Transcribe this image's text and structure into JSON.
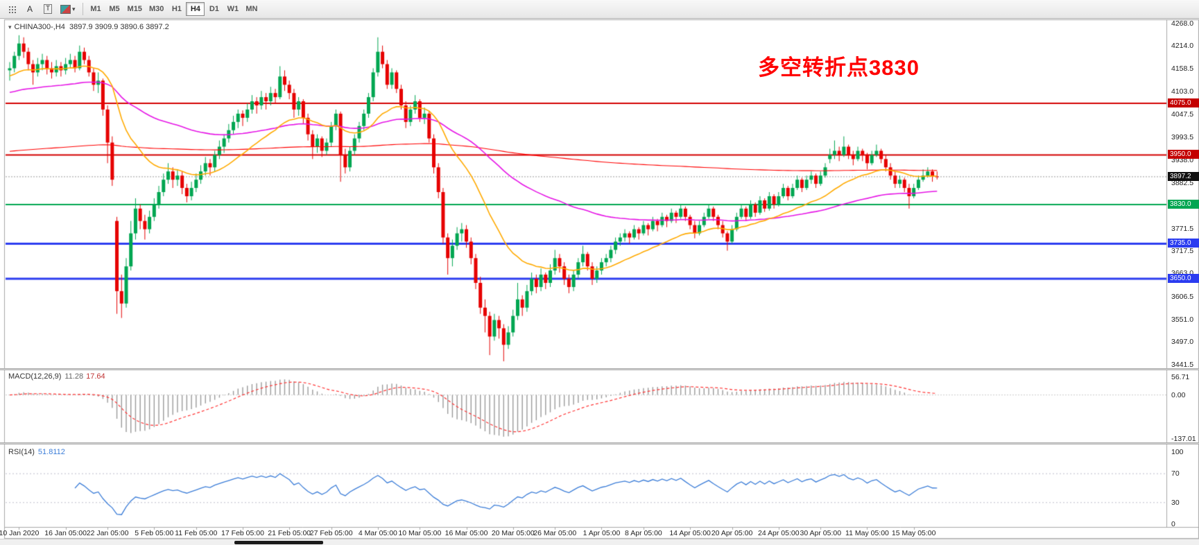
{
  "toolbar": {
    "tool_a": "A",
    "tool_t": "T",
    "timeframes": [
      "M1",
      "M5",
      "M15",
      "M30",
      "H1",
      "H4",
      "D1",
      "W1",
      "MN"
    ],
    "active_timeframe": "H4"
  },
  "chart": {
    "title_symbol": "CHINA300-,H4",
    "title_ohlc": "3897.9 3909.9 3890.6 3897.2",
    "collapse_glyph": "▾",
    "annotation": {
      "text": "多空转折点3830",
      "color": "#ff0000"
    },
    "price_axis_ticks": [
      "4268.0",
      "4214.0",
      "4158.5",
      "4103.0",
      "4047.5",
      "3993.5",
      "3938.0",
      "3882.5",
      "3826.5",
      "3771.5",
      "3717.5",
      "3663.0",
      "3606.5",
      "3551.0",
      "3497.0",
      "3441.5"
    ],
    "price_badges": [
      {
        "text": "4075.0",
        "price": 4075.0,
        "bg": "#c40000"
      },
      {
        "text": "3950.0",
        "price": 3950.0,
        "bg": "#c40000"
      },
      {
        "text": "3897.2",
        "price": 3897.2,
        "bg": "#111111"
      },
      {
        "text": "3830.0",
        "price": 3830.0,
        "bg": "#00a651"
      },
      {
        "text": "3735.0",
        "price": 3735.0,
        "bg": "#2b3cf0"
      },
      {
        "text": "3650.0",
        "price": 3650.0,
        "bg": "#2b3cf0"
      }
    ],
    "time_labels": [
      "10 Jan 2020",
      "16 Jan 05:00",
      "22 Jan 05:00",
      "5 Feb 05:00",
      "11 Feb 05:00",
      "17 Feb 05:00",
      "21 Feb 05:00",
      "27 Feb 05:00",
      "4 Mar 05:00",
      "10 Mar 05:00",
      "16 Mar 05:00",
      "20 Mar 05:00",
      "26 Mar 05:00",
      "1 Apr 05:00",
      "8 Apr 05:00",
      "14 Apr 05:00",
      "20 Apr 05:00",
      "24 Apr 05:00",
      "30 Apr 05:00",
      "11 May 05:00",
      "15 May 05:00"
    ]
  },
  "macd": {
    "label": "MACD(12,26,9)",
    "main_value": "11.28",
    "signal_value": "17.64",
    "axis": [
      {
        "text": "56.71",
        "value": 56.71
      },
      {
        "text": "0.00",
        "value": 0
      },
      {
        "text": "-137.01",
        "value": -137.01
      }
    ]
  },
  "rsi": {
    "label": "RSI(14)",
    "value": "51.8112",
    "axis": [
      {
        "text": "100",
        "value": 100
      },
      {
        "text": "70",
        "value": 70
      },
      {
        "text": "30",
        "value": 30
      },
      {
        "text": "0",
        "value": 0
      }
    ]
  },
  "chart_data": {
    "type": "candlestick",
    "symbol": "CHINA300-",
    "timeframe": "H4",
    "last_ohlc": {
      "open": 3897.9,
      "high": 3909.9,
      "low": 3890.6,
      "close": 3897.2
    },
    "current_price": 3897.2,
    "price_range": [
      3435,
      4275
    ],
    "levels": [
      {
        "price": 4075,
        "color": "#d40000",
        "width": 2
      },
      {
        "price": 3950,
        "color": "#d40000",
        "width": 2
      },
      {
        "price": 3830,
        "color": "#00a651",
        "width": 2
      },
      {
        "price": 3735,
        "color": "#2b3cf0",
        "width": 3
      },
      {
        "price": 3650,
        "color": "#2b3cf0",
        "width": 3
      }
    ],
    "colors": {
      "up": "#00a651",
      "down": "#e60000",
      "macd_hist": "#9a9a9a",
      "macd_signal": "#ff3333",
      "rsi": "#3b7dd8"
    },
    "moving_averages": [
      {
        "name": "ma-slow-red",
        "color": "#ff0000",
        "alpha": 0.004,
        "seed": 3958,
        "width": 1.1
      },
      {
        "name": "ma-medium-magenta",
        "color": "#e614e6",
        "alpha": 0.025,
        "seed": 4100,
        "width": 1.6
      },
      {
        "name": "ma-fast-orange",
        "color": "#ffaa00",
        "alpha": 0.08,
        "seed": 4140,
        "width": 1.6
      }
    ],
    "macd": {
      "fast": 12,
      "slow": 26,
      "signal": 9,
      "scale": [
        -140,
        60
      ]
    },
    "rsi": {
      "period": 14,
      "levels": [
        70,
        30
      ],
      "scale": [
        0,
        100
      ]
    },
    "x_label_indices": [
      2,
      12,
      21,
      31,
      40,
      50,
      60,
      69,
      79,
      88,
      98,
      108,
      117,
      127,
      136,
      146,
      155,
      165,
      174,
      184,
      194
    ],
    "candles": [
      [
        4155,
        4175,
        4130,
        4160
      ],
      [
        4160,
        4200,
        4150,
        4190
      ],
      [
        4190,
        4240,
        4180,
        4220
      ],
      [
        4220,
        4235,
        4185,
        4200
      ],
      [
        4200,
        4210,
        4155,
        4170
      ],
      [
        4170,
        4180,
        4120,
        4150
      ],
      [
        4150,
        4185,
        4140,
        4170
      ],
      [
        4170,
        4195,
        4155,
        4180
      ],
      [
        4180,
        4190,
        4145,
        4160
      ],
      [
        4160,
        4175,
        4135,
        4150
      ],
      [
        4150,
        4180,
        4140,
        4165
      ],
      [
        4165,
        4175,
        4140,
        4155
      ],
      [
        4155,
        4185,
        4145,
        4170
      ],
      [
        4170,
        4195,
        4160,
        4180
      ],
      [
        4180,
        4190,
        4150,
        4160
      ],
      [
        4160,
        4215,
        4155,
        4200
      ],
      [
        4200,
        4210,
        4170,
        4180
      ],
      [
        4180,
        4190,
        4140,
        4150
      ],
      [
        4150,
        4160,
        4105,
        4120
      ],
      [
        4120,
        4150,
        4100,
        4130
      ],
      [
        4130,
        4135,
        4045,
        4060
      ],
      [
        4060,
        4070,
        3930,
        3980
      ],
      [
        3980,
        3995,
        3875,
        3890
      ],
      [
        3790,
        3800,
        3565,
        3620
      ],
      [
        3620,
        3660,
        3555,
        3590
      ],
      [
        3590,
        3700,
        3580,
        3680
      ],
      [
        3680,
        3790,
        3670,
        3760
      ],
      [
        3760,
        3845,
        3745,
        3820
      ],
      [
        3820,
        3830,
        3770,
        3790
      ],
      [
        3790,
        3805,
        3745,
        3770
      ],
      [
        3770,
        3815,
        3760,
        3800
      ],
      [
        3800,
        3845,
        3790,
        3830
      ],
      [
        3830,
        3875,
        3820,
        3860
      ],
      [
        3860,
        3905,
        3850,
        3890
      ],
      [
        3890,
        3930,
        3880,
        3910
      ],
      [
        3910,
        3920,
        3870,
        3890
      ],
      [
        3890,
        3915,
        3875,
        3900
      ],
      [
        3900,
        3910,
        3855,
        3870
      ],
      [
        3870,
        3880,
        3835,
        3850
      ],
      [
        3850,
        3885,
        3840,
        3870
      ],
      [
        3870,
        3905,
        3860,
        3890
      ],
      [
        3890,
        3925,
        3880,
        3910
      ],
      [
        3910,
        3945,
        3900,
        3930
      ],
      [
        3930,
        3940,
        3900,
        3920
      ],
      [
        3920,
        3960,
        3910,
        3950
      ],
      [
        3950,
        3985,
        3940,
        3970
      ],
      [
        3970,
        4000,
        3955,
        3990
      ],
      [
        3990,
        4025,
        3980,
        4010
      ],
      [
        4010,
        4045,
        4000,
        4030
      ],
      [
        4030,
        4060,
        4015,
        4050
      ],
      [
        4050,
        4058,
        4020,
        4040
      ],
      [
        4040,
        4075,
        4030,
        4060
      ],
      [
        4060,
        4095,
        4050,
        4080
      ],
      [
        4080,
        4090,
        4050,
        4070
      ],
      [
        4070,
        4105,
        4060,
        4090
      ],
      [
        4090,
        4100,
        4060,
        4080
      ],
      [
        4080,
        4115,
        4070,
        4100
      ],
      [
        4100,
        4110,
        4075,
        4090
      ],
      [
        4090,
        4165,
        4085,
        4140
      ],
      [
        4140,
        4155,
        4105,
        4120
      ],
      [
        4120,
        4130,
        4085,
        4100
      ],
      [
        4100,
        4110,
        4040,
        4060
      ],
      [
        4060,
        4090,
        4045,
        4080
      ],
      [
        4080,
        4085,
        4025,
        4040
      ],
      [
        4040,
        4050,
        3985,
        4000
      ],
      [
        4000,
        4010,
        3940,
        3970
      ],
      [
        3970,
        4000,
        3955,
        3990
      ],
      [
        3990,
        3995,
        3945,
        3960
      ],
      [
        3960,
        3990,
        3950,
        3980
      ],
      [
        3980,
        4030,
        3970,
        4020
      ],
      [
        4020,
        4060,
        4010,
        4050
      ],
      [
        4050,
        4055,
        3885,
        3950
      ],
      [
        3950,
        3965,
        3905,
        3920
      ],
      [
        3920,
        3970,
        3910,
        3960
      ],
      [
        3960,
        4000,
        3950,
        3990
      ],
      [
        3990,
        4030,
        3980,
        4020
      ],
      [
        4020,
        4060,
        4010,
        4050
      ],
      [
        4050,
        4100,
        4040,
        4090
      ],
      [
        4090,
        4160,
        4080,
        4150
      ],
      [
        4150,
        4235,
        4140,
        4200
      ],
      [
        4200,
        4215,
        4160,
        4170
      ],
      [
        4170,
        4180,
        4110,
        4120
      ],
      [
        4120,
        4160,
        4110,
        4150
      ],
      [
        4150,
        4155,
        4100,
        4110
      ],
      [
        4110,
        4120,
        4060,
        4070
      ],
      [
        4070,
        4080,
        4015,
        4030
      ],
      [
        4030,
        4070,
        4020,
        4060
      ],
      [
        4060,
        4095,
        4050,
        4080
      ],
      [
        4080,
        4085,
        4030,
        4040
      ],
      [
        4040,
        4065,
        4025,
        4050
      ],
      [
        4050,
        4055,
        3980,
        3990
      ],
      [
        3990,
        4000,
        3905,
        3920
      ],
      [
        3920,
        3930,
        3845,
        3860
      ],
      [
        3860,
        3870,
        3735,
        3750
      ],
      [
        3750,
        3760,
        3660,
        3700
      ],
      [
        3700,
        3745,
        3680,
        3730
      ],
      [
        3730,
        3775,
        3720,
        3760
      ],
      [
        3760,
        3785,
        3740,
        3770
      ],
      [
        3770,
        3780,
        3725,
        3740
      ],
      [
        3740,
        3750,
        3685,
        3700
      ],
      [
        3700,
        3710,
        3625,
        3640
      ],
      [
        3640,
        3655,
        3565,
        3580
      ],
      [
        3580,
        3600,
        3520,
        3560
      ],
      [
        3560,
        3570,
        3465,
        3510
      ],
      [
        3510,
        3565,
        3500,
        3550
      ],
      [
        3550,
        3560,
        3505,
        3530
      ],
      [
        3530,
        3540,
        3450,
        3490
      ],
      [
        3490,
        3535,
        3480,
        3520
      ],
      [
        3520,
        3575,
        3510,
        3560
      ],
      [
        3560,
        3640,
        3550,
        3600
      ],
      [
        3600,
        3610,
        3560,
        3580
      ],
      [
        3580,
        3635,
        3570,
        3620
      ],
      [
        3620,
        3665,
        3610,
        3650
      ],
      [
        3650,
        3660,
        3615,
        3630
      ],
      [
        3630,
        3675,
        3620,
        3660
      ],
      [
        3660,
        3665,
        3625,
        3640
      ],
      [
        3640,
        3685,
        3630,
        3670
      ],
      [
        3670,
        3720,
        3660,
        3700
      ],
      [
        3700,
        3710,
        3665,
        3680
      ],
      [
        3680,
        3690,
        3635,
        3650
      ],
      [
        3650,
        3660,
        3615,
        3630
      ],
      [
        3630,
        3670,
        3620,
        3660
      ],
      [
        3660,
        3700,
        3650,
        3690
      ],
      [
        3690,
        3730,
        3680,
        3710
      ],
      [
        3710,
        3715,
        3670,
        3680
      ],
      [
        3680,
        3690,
        3635,
        3650
      ],
      [
        3650,
        3680,
        3640,
        3670
      ],
      [
        3670,
        3700,
        3660,
        3690
      ],
      [
        3690,
        3710,
        3680,
        3700
      ],
      [
        3700,
        3730,
        3690,
        3720
      ],
      [
        3720,
        3750,
        3710,
        3740
      ],
      [
        3740,
        3760,
        3730,
        3750
      ],
      [
        3750,
        3770,
        3740,
        3760
      ],
      [
        3760,
        3765,
        3735,
        3750
      ],
      [
        3750,
        3780,
        3745,
        3770
      ],
      [
        3770,
        3775,
        3745,
        3760
      ],
      [
        3760,
        3790,
        3755,
        3780
      ],
      [
        3780,
        3785,
        3755,
        3770
      ],
      [
        3770,
        3800,
        3765,
        3790
      ],
      [
        3790,
        3795,
        3765,
        3780
      ],
      [
        3780,
        3810,
        3775,
        3800
      ],
      [
        3800,
        3805,
        3775,
        3790
      ],
      [
        3790,
        3820,
        3785,
        3810
      ],
      [
        3810,
        3815,
        3785,
        3800
      ],
      [
        3800,
        3830,
        3795,
        3820
      ],
      [
        3820,
        3825,
        3790,
        3800
      ],
      [
        3800,
        3805,
        3770,
        3780
      ],
      [
        3780,
        3790,
        3748,
        3760
      ],
      [
        3760,
        3790,
        3755,
        3780
      ],
      [
        3780,
        3810,
        3775,
        3800
      ],
      [
        3800,
        3830,
        3795,
        3820
      ],
      [
        3820,
        3825,
        3790,
        3800
      ],
      [
        3800,
        3805,
        3770,
        3780
      ],
      [
        3780,
        3790,
        3750,
        3760
      ],
      [
        3760,
        3765,
        3718,
        3740
      ],
      [
        3740,
        3780,
        3735,
        3770
      ],
      [
        3770,
        3810,
        3765,
        3800
      ],
      [
        3800,
        3830,
        3795,
        3820
      ],
      [
        3820,
        3825,
        3790,
        3800
      ],
      [
        3800,
        3840,
        3795,
        3830
      ],
      [
        3830,
        3835,
        3800,
        3810
      ],
      [
        3810,
        3850,
        3805,
        3840
      ],
      [
        3840,
        3845,
        3812,
        3820
      ],
      [
        3820,
        3860,
        3815,
        3850
      ],
      [
        3850,
        3855,
        3820,
        3830
      ],
      [
        3830,
        3860,
        3825,
        3850
      ],
      [
        3850,
        3880,
        3845,
        3870
      ],
      [
        3870,
        3875,
        3840,
        3850
      ],
      [
        3850,
        3880,
        3845,
        3870
      ],
      [
        3870,
        3900,
        3865,
        3890
      ],
      [
        3890,
        3895,
        3860,
        3870
      ],
      [
        3870,
        3900,
        3865,
        3890
      ],
      [
        3890,
        3910,
        3880,
        3900
      ],
      [
        3900,
        3905,
        3870,
        3880
      ],
      [
        3880,
        3910,
        3875,
        3900
      ],
      [
        3900,
        3930,
        3895,
        3920
      ],
      [
        3940,
        3965,
        3930,
        3950
      ],
      [
        3950,
        3985,
        3940,
        3960
      ],
      [
        3960,
        3970,
        3935,
        3950
      ],
      [
        3950,
        3995,
        3945,
        3970
      ],
      [
        3970,
        3975,
        3940,
        3950
      ],
      [
        3950,
        3960,
        3925,
        3940
      ],
      [
        3940,
        3970,
        3935,
        3960
      ],
      [
        3960,
        3965,
        3935,
        3950
      ],
      [
        3950,
        3955,
        3915,
        3930
      ],
      [
        3930,
        3960,
        3925,
        3950
      ],
      [
        3950,
        3975,
        3945,
        3960
      ],
      [
        3960,
        3965,
        3930,
        3940
      ],
      [
        3940,
        3950,
        3910,
        3920
      ],
      [
        3920,
        3930,
        3890,
        3900
      ],
      [
        3900,
        3910,
        3870,
        3880
      ],
      [
        3880,
        3900,
        3870,
        3890
      ],
      [
        3890,
        3895,
        3860,
        3870
      ],
      [
        3870,
        3880,
        3820,
        3850
      ],
      [
        3850,
        3880,
        3845,
        3870
      ],
      [
        3870,
        3900,
        3865,
        3890
      ],
      [
        3890,
        3915,
        3885,
        3900
      ],
      [
        3900,
        3920,
        3895,
        3910
      ],
      [
        3910,
        3915,
        3885,
        3898
      ],
      [
        3897.9,
        3909.9,
        3890.6,
        3897.2
      ]
    ]
  }
}
